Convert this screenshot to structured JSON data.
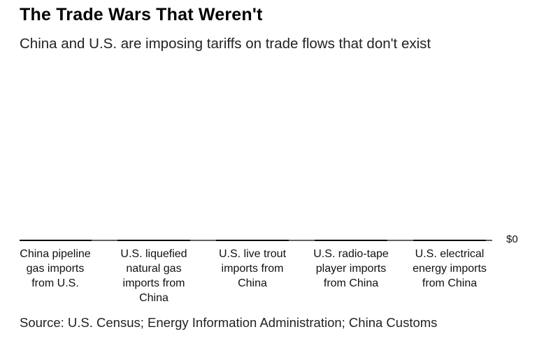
{
  "chart_data": {
    "type": "bar",
    "title": "The Trade Wars That Weren't",
    "subtitle": "China and U.S. are imposing tariffs on trade flows that don't exist",
    "categories": [
      "China pipeline gas imports from U.S.",
      "U.S. liquefied natural gas imports from China",
      "U.S. live trout imports from China",
      "U.S. radio-tape player imports from China",
      "U.S. electrical energy imports from China"
    ],
    "category_label_lines": [
      [
        "China pipeline",
        "gas imports",
        "from U.S."
      ],
      [
        "U.S. liquefied",
        "natural gas",
        "imports from",
        "China"
      ],
      [
        "U.S. live trout",
        "imports from",
        "China"
      ],
      [
        "U.S. radio-tape",
        "player imports",
        "from China"
      ],
      [
        "U.S. electrical",
        "energy imports",
        "from China"
      ]
    ],
    "values": [
      0,
      0,
      0,
      0,
      0
    ],
    "unit": "$",
    "y_tick_labels": [
      "$0"
    ],
    "y_ticks": [
      0
    ],
    "ylim": [
      0,
      1
    ],
    "xlabel": "",
    "ylabel": "",
    "source": "Source: U.S. Census; Energy Information Administration; China Customs"
  },
  "colors": {
    "bar": "#000000",
    "baseline": "#000000",
    "text": "#111111"
  }
}
